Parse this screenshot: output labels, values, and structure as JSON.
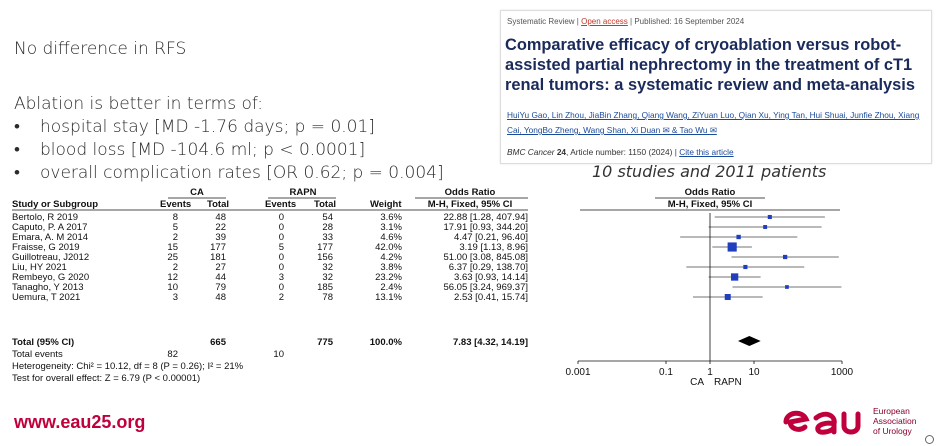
{
  "slide": {
    "rfs_prefix": "No difference in ",
    "rfs_term": "RFS",
    "ablation_heading": "Ablation is better in terms of:",
    "bullets": [
      "hospital stay [MD -1.76 days; p = 0.01]",
      "blood loss [MD -104.6 ml; p < 0.0001]",
      "overall complication rates [OR 0.62; p = 0.004]"
    ],
    "bullet_symbol": "•",
    "studies_note": "10 studies and 2011 patients",
    "footer_url": "www.eau25.org",
    "logo_org_lines": [
      "European",
      "Association",
      "of Urology"
    ]
  },
  "paper": {
    "type": "Systematic Review",
    "access": "Open access",
    "published": "Published: 16 September 2024",
    "title": "Comparative efficacy of cryoablation versus robot-assisted partial nephrectomy in the treatment of cT1 renal tumors: a systematic review and meta-analysis",
    "authors": "HuiYu Gao, Lin Zhou, JiaBin Zhang, Qiang Wang, ZiYuan Luo, Qian Xu, Ying Tan, Hui Shuai, Junfie Zhou, Xiang Cai, YongBo Zheng, Wang Shan, Xi Duan ✉ & Tao Wu ✉",
    "journal": "BMC Cancer",
    "volume": "24",
    "article": ", Article number: 1150 (2024)",
    "cite": "Cite this article"
  },
  "forest": {
    "header_ca": "CA",
    "header_rapn": "RAPN",
    "header_or": "Odds Ratio",
    "col_study": "Study or Subgroup",
    "col_events": "Events",
    "col_total": "Total",
    "col_weight": "Weight",
    "col_method": "M-H, Fixed, 95% CI",
    "studies": [
      {
        "name": "Bertolo, R 2019",
        "ca_events": "8",
        "ca_total": "48",
        "rapn_events": "0",
        "rapn_total": "54",
        "weight": "3.6%",
        "ci_text": "22.88 [1.28, 407.94]",
        "or": 22.88,
        "lo": 1.28,
        "hi": 407.94,
        "w": 3.6
      },
      {
        "name": "Caputo, P. A 2017",
        "ca_events": "5",
        "ca_total": "22",
        "rapn_events": "0",
        "rapn_total": "28",
        "weight": "3.1%",
        "ci_text": "17.91 [0.93, 344.20]",
        "or": 17.91,
        "lo": 0.93,
        "hi": 344.2,
        "w": 3.1
      },
      {
        "name": "Emara, A. M 2014",
        "ca_events": "2",
        "ca_total": "39",
        "rapn_events": "0",
        "rapn_total": "33",
        "weight": "4.6%",
        "ci_text": "4.47 [0.21, 96.40]",
        "or": 4.47,
        "lo": 0.21,
        "hi": 96.4,
        "w": 4.6
      },
      {
        "name": "Fraisse, G 2019",
        "ca_events": "15",
        "ca_total": "177",
        "rapn_events": "5",
        "rapn_total": "177",
        "weight": "42.0%",
        "ci_text": "3.19 [1.13, 8.96]",
        "or": 3.19,
        "lo": 1.13,
        "hi": 8.96,
        "w": 42.0
      },
      {
        "name": "Guillotreau, J2012",
        "ca_events": "25",
        "ca_total": "181",
        "rapn_events": "0",
        "rapn_total": "156",
        "weight": "4.2%",
        "ci_text": "51.00 [3.08, 845.08]",
        "or": 51.0,
        "lo": 3.08,
        "hi": 845.08,
        "w": 4.2
      },
      {
        "name": "Liu, HY 2021",
        "ca_events": "2",
        "ca_total": "27",
        "rapn_events": "0",
        "rapn_total": "32",
        "weight": "3.8%",
        "ci_text": "6.37 [0.29, 138.70]",
        "or": 6.37,
        "lo": 0.29,
        "hi": 138.7,
        "w": 3.8
      },
      {
        "name": "Rembeyo, G 2020",
        "ca_events": "12",
        "ca_total": "44",
        "rapn_events": "3",
        "rapn_total": "32",
        "weight": "23.2%",
        "ci_text": "3.63 [0.93, 14.14]",
        "or": 3.63,
        "lo": 0.93,
        "hi": 14.14,
        "w": 23.2
      },
      {
        "name": "Tanagho, Y 2013",
        "ca_events": "10",
        "ca_total": "79",
        "rapn_events": "0",
        "rapn_total": "185",
        "weight": "2.4%",
        "ci_text": "56.05 [3.24, 969.37]",
        "or": 56.05,
        "lo": 3.24,
        "hi": 969.37,
        "w": 2.4
      },
      {
        "name": "Uemura, T 2021",
        "ca_events": "3",
        "ca_total": "48",
        "rapn_events": "2",
        "rapn_total": "78",
        "weight": "13.1%",
        "ci_text": "2.53 [0.41, 15.74]",
        "or": 2.53,
        "lo": 0.41,
        "hi": 15.74,
        "w": 13.1
      }
    ],
    "total": {
      "label": "Total (95% CI)",
      "ca_total": "665",
      "rapn_total": "775",
      "weight": "100.0%",
      "ci_text": "7.83 [4.32, 14.19]",
      "or": 7.83,
      "lo": 4.32,
      "hi": 14.19
    },
    "events": {
      "label": "Total events",
      "ca": "82",
      "rapn": "10"
    },
    "heterogeneity": "Heterogeneity: Chi² = 10.12, df = 8 (P = 0.26); I² = 21%",
    "overall_effect": "Test for overall effect: Z = 6.79 (P < 0.00001)",
    "axis": {
      "ticks": [
        0.001,
        0.1,
        1,
        10,
        1000
      ],
      "tick_labels": [
        "0.001",
        "0.1",
        "1",
        "10",
        "1000"
      ],
      "left_label": "CA",
      "right_label": "RAPN",
      "scale": "log"
    },
    "colors": {
      "marker": "#1f3fbf",
      "diamond": "#000000"
    }
  }
}
